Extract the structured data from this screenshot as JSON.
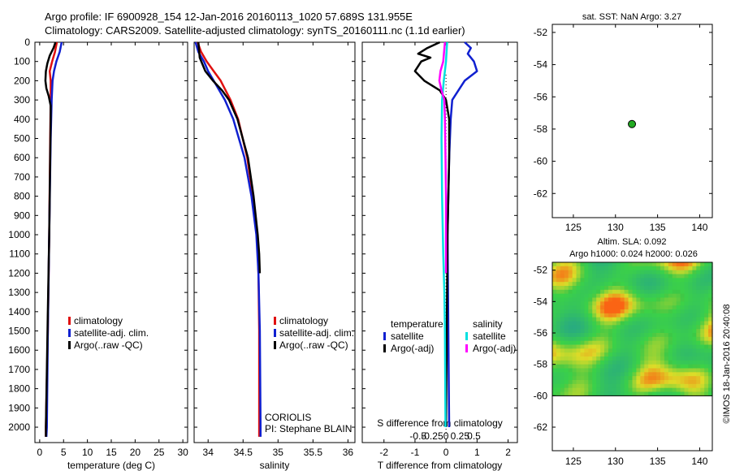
{
  "title": {
    "line1": "Argo profile: IF 6900928_154 12-Jan-2016 20160113_1020 57.689S 131.955E",
    "line2": "Climatology: CARS2009. Satellite-adjusted climatology: synTS_20160111.nc (1.1d earlier)"
  },
  "stamp": "©IMOS 18-Jan-2016 20:40:08",
  "colors": {
    "clim": "#e01010",
    "sat": "#1020d0",
    "argo": "#000000",
    "sat_s": "#00e0e0",
    "argo_s": "#ff00ff",
    "dot": "#22aa22"
  },
  "chart_data": [
    {
      "type": "line",
      "name": "temperature",
      "xlabel": "temperature (deg C)",
      "ylabel": "",
      "xlim": [
        -1,
        31
      ],
      "ylim": [
        2080,
        0
      ],
      "xticks": [
        0,
        5,
        10,
        15,
        20,
        25,
        30
      ],
      "yticks": [
        0,
        100,
        200,
        300,
        400,
        500,
        600,
        700,
        800,
        900,
        1000,
        1100,
        1200,
        1300,
        1400,
        1500,
        1600,
        1700,
        1800,
        1900,
        2000
      ],
      "series": [
        {
          "name": "climatology",
          "color": "clim",
          "depth": [
            0,
            50,
            100,
            150,
            200,
            300,
            500,
            1000,
            1500,
            2000,
            2050
          ],
          "values": [
            3.6,
            3.2,
            2.6,
            2.1,
            2.3,
            2.3,
            2.2,
            2.0,
            1.7,
            1.3,
            1.3
          ]
        },
        {
          "name": "satellite-adj. clim.",
          "color": "sat",
          "depth": [
            0,
            50,
            100,
            150,
            200,
            300,
            500,
            1000,
            1500,
            2000,
            2050
          ],
          "values": [
            4.6,
            4.2,
            3.5,
            3.0,
            2.7,
            2.5,
            2.3,
            2.0,
            1.7,
            1.5,
            1.4
          ]
        },
        {
          "name": "Argo(..raw -QC)",
          "color": "argo",
          "depth": [
            0,
            30,
            70,
            110,
            150,
            200,
            240,
            280,
            330,
            400,
            600,
            1000,
            1400,
            2000,
            2050
          ],
          "values": [
            3.3,
            2.9,
            2.1,
            1.6,
            1.3,
            1.2,
            1.4,
            1.9,
            2.3,
            2.3,
            2.2,
            2.0,
            1.7,
            1.3,
            1.3
          ]
        }
      ],
      "legend": [
        "climatology",
        "satellite-adj. clim.",
        "Argo(..raw -QC)"
      ]
    },
    {
      "type": "line",
      "name": "salinity",
      "xlabel": "salinity",
      "ylabel": "",
      "xlim": [
        33.8,
        36.1
      ],
      "ylim": [
        2080,
        0
      ],
      "xticks": [
        34,
        34.5,
        35,
        35.5,
        36
      ],
      "xticklabels": [
        "34",
        "34.5",
        "35",
        "35.5",
        "36"
      ],
      "series": [
        {
          "name": "climatology",
          "color": "clim",
          "depth": [
            0,
            50,
            100,
            150,
            200,
            300,
            400,
            600,
            800,
            1000,
            1200,
            1500,
            2000,
            2050
          ],
          "values": [
            33.85,
            33.9,
            33.98,
            34.08,
            34.18,
            34.32,
            34.43,
            34.56,
            34.64,
            34.7,
            34.72,
            34.73,
            34.73,
            34.73
          ]
        },
        {
          "name": "satellite-adj. clim.",
          "color": "sat",
          "depth": [
            0,
            50,
            100,
            150,
            200,
            300,
            400,
            600,
            800,
            1000,
            1200,
            1500,
            2000,
            2050
          ],
          "values": [
            33.82,
            33.86,
            33.94,
            34.0,
            34.08,
            34.24,
            34.36,
            34.52,
            34.62,
            34.69,
            34.72,
            34.74,
            34.75,
            34.75
          ]
        },
        {
          "name": "Argo(..raw -QC)",
          "color": "argo",
          "depth": [
            0,
            80,
            150,
            200,
            250,
            300,
            400,
            600,
            800,
            1000,
            1100,
            1200
          ],
          "values": [
            33.86,
            33.88,
            33.96,
            34.07,
            34.2,
            34.3,
            34.42,
            34.57,
            34.65,
            34.71,
            34.73,
            34.74
          ]
        }
      ],
      "legend": [
        "climatology",
        "satellite-adj. clim.",
        "Argo(..raw -QC)"
      ],
      "annotations": [
        "CORIOLIS",
        "PI: Stephane BLAIN"
      ]
    },
    {
      "type": "line",
      "name": "difference",
      "xlabel": "T difference from climatology",
      "xlabel_top": "S difference from climatology",
      "xlim": [
        -2.7,
        2.3
      ],
      "ylim": [
        2080,
        0
      ],
      "xticks": [
        -2,
        -1,
        0,
        1,
        2
      ],
      "sticks": [
        -0.5,
        -0.25,
        0,
        0.25,
        0.5
      ],
      "sticklabels": [
        "-0.5",
        "-0.25",
        "0",
        "0.25",
        "0.5"
      ],
      "series": [
        {
          "name": "temperature satellite",
          "color": "sat",
          "depth": [
            0,
            30,
            60,
            100,
            150,
            200,
            250,
            300,
            400,
            600,
            1000,
            2000
          ],
          "values": [
            0.6,
            0.8,
            0.7,
            0.9,
            1.0,
            0.6,
            0.4,
            0.2,
            0.15,
            0.1,
            0.05,
            0.1
          ]
        },
        {
          "name": "temperature Argo(-adj)",
          "color": "argo",
          "depth": [
            0,
            30,
            60,
            80,
            100,
            150,
            200,
            250,
            300,
            400,
            600,
            1000,
            2000
          ],
          "values": [
            -0.2,
            -0.6,
            -0.9,
            -0.5,
            -0.8,
            -1.0,
            -0.7,
            -0.2,
            0.0,
            0.1,
            0.1,
            0.05,
            0.0
          ]
        },
        {
          "name": "salinity satellite",
          "color": "sat_s",
          "depth": [
            0,
            100,
            200,
            300,
            500,
            800,
            1100,
            1300,
            1500,
            2000
          ],
          "values": [
            0.02,
            0.0,
            -0.04,
            -0.07,
            -0.08,
            -0.07,
            -0.05,
            -0.03,
            -0.02,
            -0.01
          ]
        },
        {
          "name": "salinity Argo(-adj)",
          "color": "argo_s",
          "depth": [
            0,
            100,
            150,
            200,
            250,
            300,
            400,
            600,
            800,
            1000,
            1200
          ],
          "values": [
            -0.02,
            -0.05,
            -0.1,
            -0.12,
            -0.08,
            -0.03,
            -0.02,
            -0.01,
            0.0,
            0.0,
            0.0
          ]
        }
      ],
      "legend_temperature": {
        "title": "temperature",
        "items": [
          "satellite",
          "Argo(-adj)"
        ]
      },
      "legend_salinity": {
        "title": "salinity",
        "items": [
          "satellite",
          "Argo(-adj)"
        ]
      }
    },
    {
      "type": "scatter",
      "name": "location",
      "title": "sat. SST: NaN Argo: 3.27",
      "xlim": [
        122.5,
        141.5
      ],
      "ylim": [
        -63.5,
        -51.5
      ],
      "xticks": [
        125,
        130,
        135,
        140
      ],
      "yticks": [
        -52,
        -54,
        -56,
        -58,
        -60,
        -62
      ],
      "points": [
        {
          "lon": 131.955,
          "lat": -57.689
        }
      ]
    },
    {
      "type": "heatmap",
      "name": "altimetry",
      "title_line1": "Altim. SLA: 0.092",
      "title_line2": "Argo h1000: 0.024 h2000: 0.026",
      "xlim": [
        122.5,
        141.5
      ],
      "ylim": [
        -63.5,
        -51.5
      ],
      "xticks": [
        125,
        130,
        135,
        140
      ],
      "yticks": [
        -52,
        -54,
        -56,
        -58,
        -60,
        -62
      ],
      "data_lat_range": [
        -60,
        -51.5
      ]
    }
  ]
}
